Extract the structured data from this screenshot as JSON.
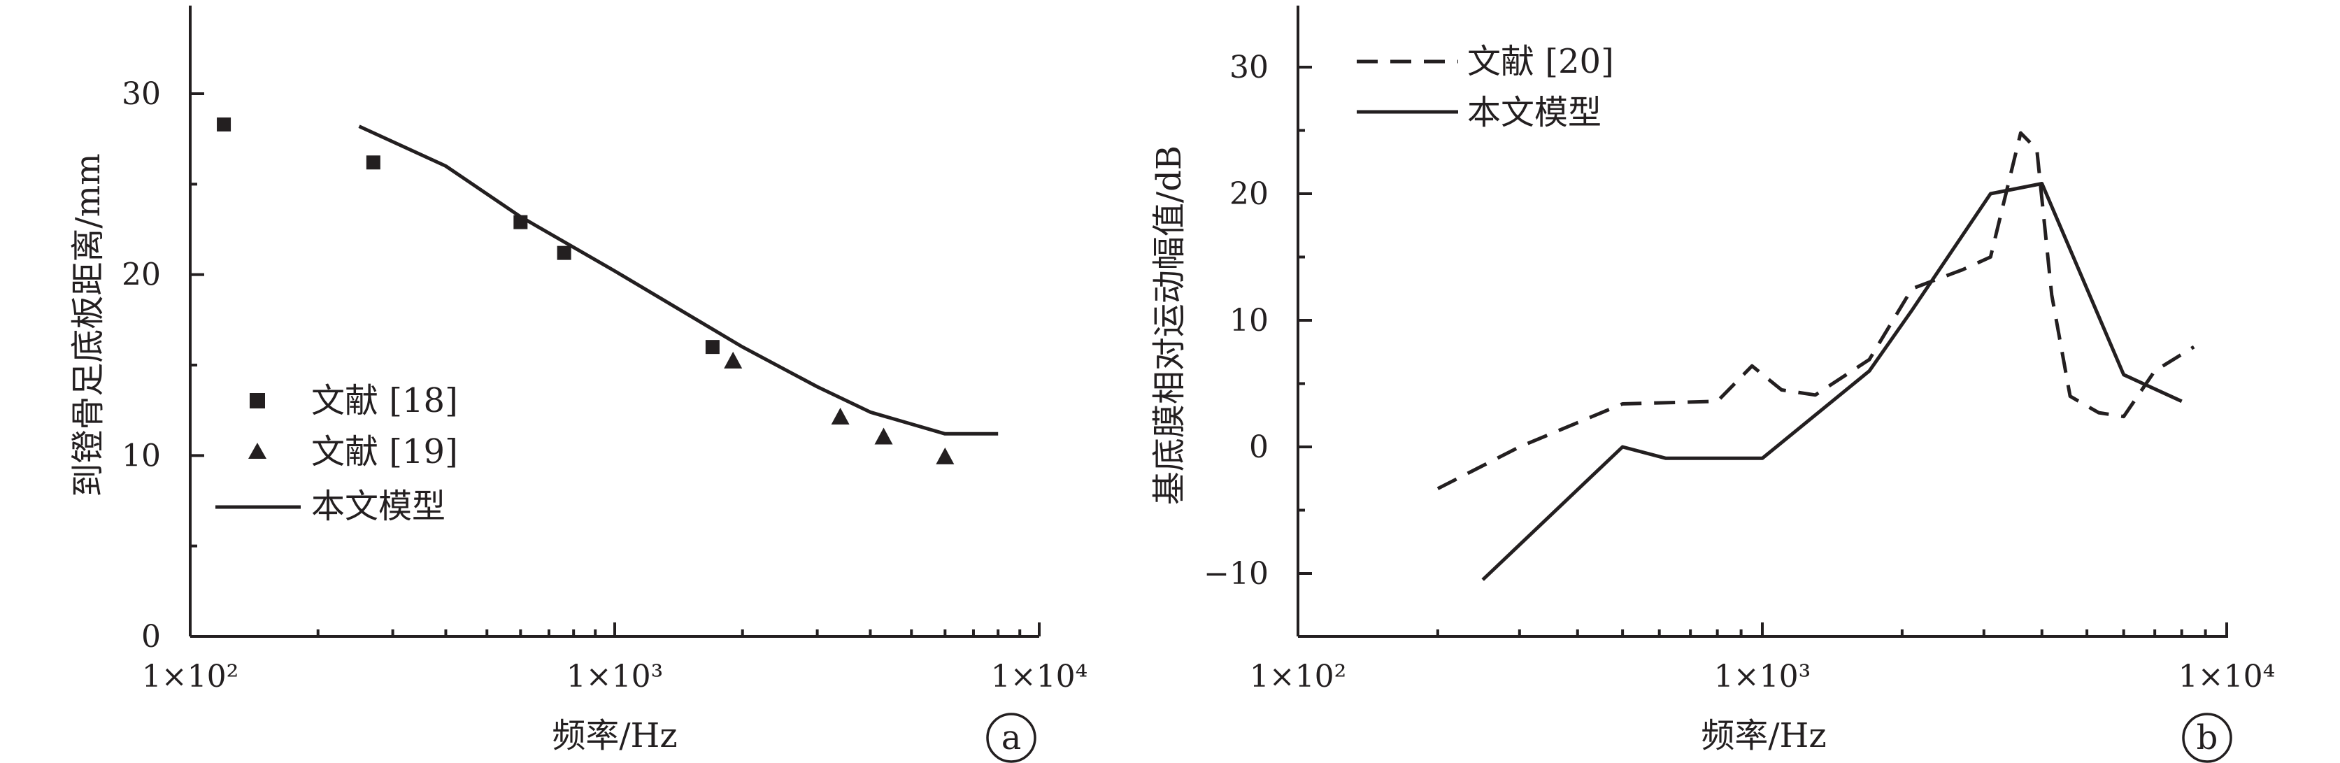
{
  "chart_data": [
    {
      "panel": "a",
      "type": "scatter",
      "x_scale": "log",
      "xlim": [
        100,
        10000
      ],
      "ylim": [
        0,
        35
      ],
      "xlabel": "频率/Hz",
      "ylabel": "到镫骨足底板距离/mm",
      "x_ticks": [
        100,
        1000,
        10000
      ],
      "x_tick_labels": [
        "1×10²",
        "1×10³",
        "1×10⁴"
      ],
      "y_ticks": [
        0,
        10,
        20,
        30
      ],
      "y_tick_labels": [
        "0",
        "10",
        "20",
        "30"
      ],
      "legend_position": "lower-left",
      "series": [
        {
          "name": "文献 [18]",
          "kind": "square-marker",
          "x": [
            120,
            270,
            600,
            760,
            1700
          ],
          "y": [
            28.3,
            26.2,
            22.9,
            21.2,
            16.0
          ]
        },
        {
          "name": "文献 [19]",
          "kind": "triangle-marker",
          "x": [
            1900,
            3400,
            4300,
            6000
          ],
          "y": [
            15.2,
            12.1,
            11.0,
            9.9
          ]
        },
        {
          "name": "本文模型",
          "kind": "solid-line",
          "x": [
            250,
            400,
            600,
            1000,
            2000,
            3000,
            4000,
            6000,
            8000
          ],
          "y": [
            28.2,
            26.0,
            23.2,
            20.2,
            16.0,
            13.8,
            12.4,
            11.2,
            11.2
          ]
        }
      ]
    },
    {
      "panel": "b",
      "type": "line",
      "x_scale": "log",
      "xlim": [
        100,
        10000
      ],
      "ylim": [
        -15,
        35
      ],
      "xlabel": "频率/Hz",
      "ylabel": "基底膜相对运动幅值/dB",
      "x_ticks": [
        100,
        1000,
        10000
      ],
      "x_tick_labels": [
        "1×10²",
        "1×10³",
        "1×10⁴"
      ],
      "y_ticks": [
        -10,
        0,
        10,
        20,
        30
      ],
      "y_tick_labels": [
        "−10",
        "0",
        "10",
        "20",
        "30"
      ],
      "legend_position": "top-left",
      "series": [
        {
          "name": "文献 [20]",
          "kind": "dashed-line",
          "x": [
            200,
            300,
            500,
            800,
            950,
            1100,
            1300,
            1700,
            2100,
            2700,
            3100,
            3600,
            3900,
            4200,
            4600,
            5300,
            6000,
            7000,
            8500
          ],
          "y": [
            -3.3,
            0,
            3.4,
            3.6,
            6.4,
            4.5,
            4.1,
            6.9,
            12.5,
            14.0,
            15.0,
            24.8,
            23.5,
            12.0,
            4.0,
            2.7,
            2.4,
            6.0,
            7.9
          ]
        },
        {
          "name": "本文模型",
          "kind": "solid-line",
          "x": [
            250,
            500,
            620,
            1000,
            1700,
            2100,
            3100,
            4000,
            6000,
            8000
          ],
          "y": [
            -10.5,
            0,
            -0.9,
            -0.9,
            6.0,
            10.8,
            20.0,
            20.8,
            5.7,
            3.6
          ]
        }
      ]
    }
  ],
  "panel_labels": [
    "a",
    "b"
  ],
  "colors": {
    "ink": "#231f20",
    "background": "#ffffff"
  }
}
